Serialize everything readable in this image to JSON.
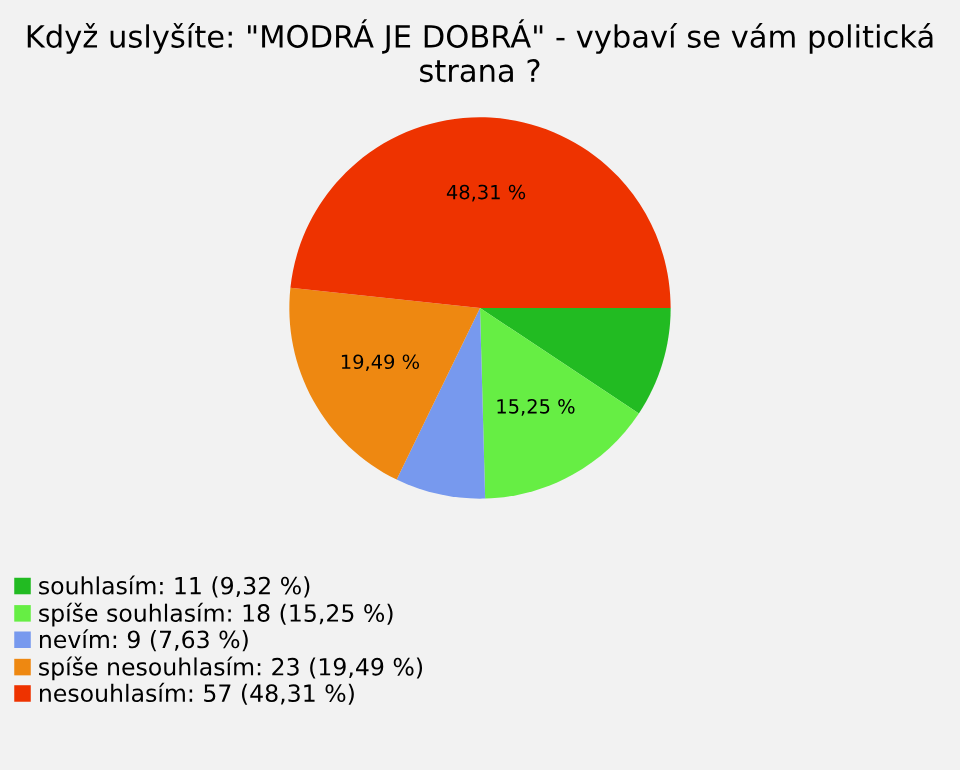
{
  "chart_data": {
    "type": "pie",
    "title": "Když uslyšíte: \"MODRÁ JE DOBRÁ\" - vybaví se vám politická strana ?",
    "categories": [
      "souhlasím: 11 (9,32 %)",
      "spíše souhlasím: 18 (15,25 %)",
      "nevím: 9 (7,63 %)",
      "spíše nesouhlasím: 23 (19,49 %)",
      "nesouhlasím: 57 (48,31 %)"
    ],
    "values": [
      9.32,
      15.25,
      7.63,
      19.49,
      48.31
    ],
    "colors": [
      "#22bb22",
      "#66ee44",
      "#7799ee",
      "#ee8811",
      "#ee3300"
    ],
    "value_labels": [
      null,
      "15,25 %",
      null,
      "19,49 %",
      "48,31 %"
    ],
    "legend": "bottom left"
  }
}
